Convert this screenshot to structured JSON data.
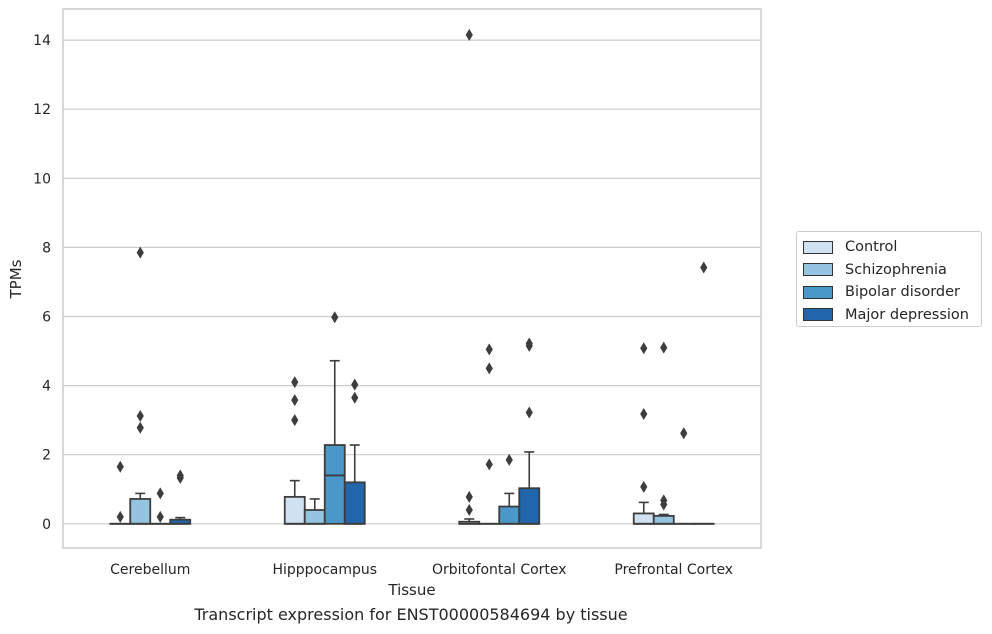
{
  "caption": "Transcript expression for ENST00000584694 by tissue",
  "chart_data": {
    "type": "box",
    "xlabel": "Tissue",
    "ylabel": "TPMs",
    "ylim": [
      -0.7,
      14.9
    ],
    "yticks": [
      0,
      2,
      4,
      6,
      8,
      10,
      12,
      14
    ],
    "grid": "horizontal",
    "legend_position": "right",
    "categories": [
      "Cerebellum",
      "Hipppocampus",
      "Orbitofontal Cortex",
      "Prefrontal Cortex"
    ],
    "series": [
      {
        "name": "Control",
        "color": "#d0e1f2",
        "boxes": [
          {
            "q1": 0,
            "median": 0,
            "q3": 0,
            "whisker_low": 0,
            "whisker_high": 0,
            "outliers": [
              0.2,
              1.65
            ]
          },
          {
            "q1": 0,
            "median": 0,
            "q3": 0.78,
            "whisker_low": 0,
            "whisker_high": 1.25,
            "outliers": [
              3.0,
              3.58,
              4.1
            ]
          },
          {
            "q1": 0,
            "median": 0,
            "q3": 0.06,
            "whisker_low": 0,
            "whisker_high": 0.14,
            "outliers": [
              0.4,
              0.78,
              14.15
            ]
          },
          {
            "q1": 0,
            "median": 0,
            "q3": 0.3,
            "whisker_low": 0,
            "whisker_high": 0.62,
            "outliers": [
              1.07,
              3.18,
              5.08
            ]
          }
        ]
      },
      {
        "name": "Schizophrenia",
        "color": "#94c4df",
        "boxes": [
          {
            "q1": 0,
            "median": 0,
            "q3": 0.72,
            "whisker_low": 0,
            "whisker_high": 0.88,
            "outliers": [
              2.78,
              3.12,
              7.85
            ]
          },
          {
            "q1": 0,
            "median": 0,
            "q3": 0.4,
            "whisker_low": 0,
            "whisker_high": 0.72,
            "outliers": []
          },
          {
            "q1": 0,
            "median": 0,
            "q3": 0,
            "whisker_low": 0,
            "whisker_high": 0,
            "outliers": [
              1.72,
              4.5,
              5.05
            ]
          },
          {
            "q1": 0,
            "median": 0,
            "q3": 0.23,
            "whisker_low": 0,
            "whisker_high": 0.27,
            "outliers": [
              0.56,
              0.68,
              5.1
            ]
          }
        ]
      },
      {
        "name": "Bipolar disorder",
        "color": "#4a98c9",
        "boxes": [
          {
            "q1": 0,
            "median": 0,
            "q3": 0,
            "whisker_low": 0,
            "whisker_high": 0,
            "outliers": [
              0.2,
              0.88
            ]
          },
          {
            "q1": 0,
            "median": 1.4,
            "q3": 2.28,
            "whisker_low": 0,
            "whisker_high": 4.72,
            "outliers": [
              5.98
            ]
          },
          {
            "q1": 0,
            "median": 0,
            "q3": 0.5,
            "whisker_low": 0,
            "whisker_high": 0.88,
            "outliers": [
              1.85
            ]
          },
          {
            "q1": 0,
            "median": 0,
            "q3": 0,
            "whisker_low": 0,
            "whisker_high": 0,
            "outliers": [
              2.62
            ]
          }
        ]
      },
      {
        "name": "Major depression",
        "color": "#2165ab",
        "boxes": [
          {
            "q1": 0,
            "median": 0,
            "q3": 0.12,
            "whisker_low": 0,
            "whisker_high": 0.18,
            "outliers": [
              1.33,
              1.4
            ]
          },
          {
            "q1": 0,
            "median": 0,
            "q3": 1.2,
            "whisker_low": 0,
            "whisker_high": 2.28,
            "outliers": [
              3.65,
              4.03
            ]
          },
          {
            "q1": 0,
            "median": 0,
            "q3": 1.03,
            "whisker_low": 0,
            "whisker_high": 2.08,
            "outliers": [
              3.22,
              5.15,
              5.22
            ]
          },
          {
            "q1": 0,
            "median": 0,
            "q3": 0,
            "whisker_low": 0,
            "whisker_high": 0,
            "outliers": [
              7.42
            ]
          }
        ]
      }
    ]
  }
}
